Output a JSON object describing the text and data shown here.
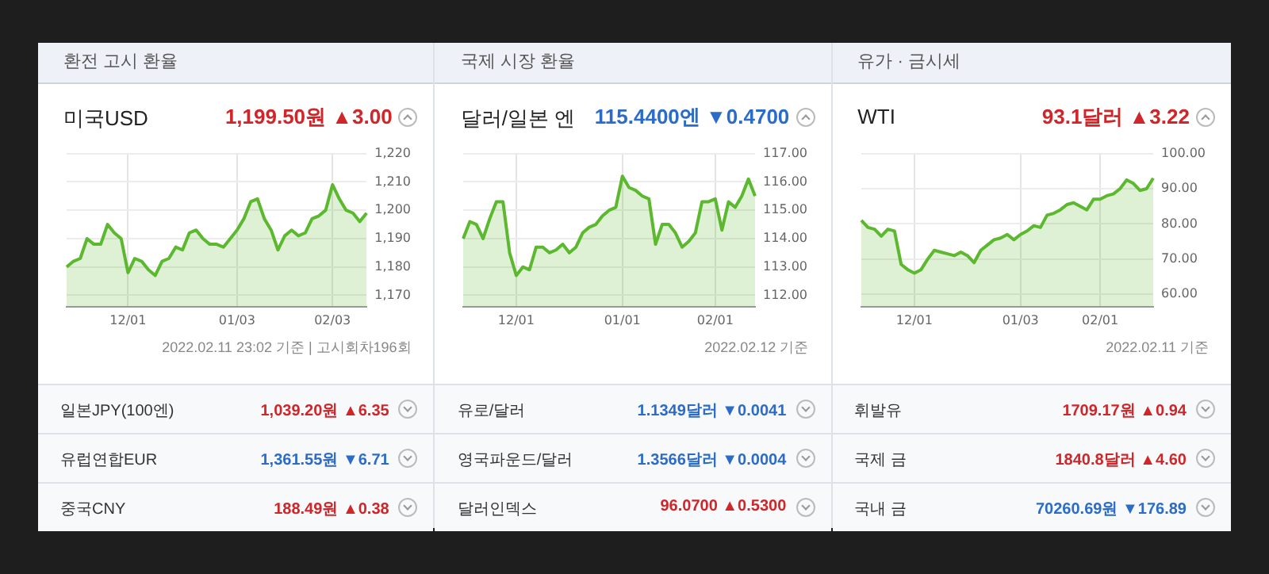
{
  "chart_data": [
    {
      "type": "area",
      "title": "환전 고시 환율",
      "subtitle": "미국USD",
      "categories": [
        null,
        null,
        null,
        null,
        null,
        null,
        null,
        null,
        null,
        "12/01",
        null,
        null,
        null,
        null,
        null,
        null,
        null,
        null,
        null,
        null,
        null,
        null,
        null,
        null,
        null,
        "01/03",
        null,
        null,
        null,
        null,
        null,
        null,
        null,
        null,
        null,
        null,
        null,
        null,
        null,
        "02/03",
        null,
        null,
        null,
        null,
        null
      ],
      "series": [
        {
          "color": "#5cb82e",
          "values": [
            1180,
            1182,
            1183,
            1190,
            1188,
            1188,
            1195,
            1192,
            1190,
            1178,
            1183,
            1182,
            1179,
            1177,
            1182,
            1183,
            1187,
            1186,
            1192,
            1193,
            1190,
            1188,
            1188,
            1187,
            1190,
            1193,
            1197,
            1203,
            1204,
            1197,
            1193,
            1186,
            1191,
            1193,
            1191,
            1192,
            1197,
            1198,
            1200,
            1209,
            1204,
            1200,
            1199,
            1196,
            1199
          ]
        }
      ],
      "ylim": [
        1166,
        1220
      ],
      "yticks": [
        {
          "value": 1170,
          "label": "1,170"
        },
        {
          "value": 1180,
          "label": "1,180"
        },
        {
          "value": 1190,
          "label": "1,190"
        },
        {
          "value": 1200,
          "label": "1,200"
        },
        {
          "value": 1210,
          "label": "1,210"
        },
        {
          "value": 1220,
          "label": "1,220"
        }
      ],
      "grid": true,
      "annotations": [
        "1,199.50원 ▲3.00",
        "2022.02.11 23:02 기준 | 고시회차196회",
        "일본JPY(100엔)",
        "1,039.20원 ▲6.35",
        "유럽연합EUR",
        "1,361.55원 ▼6.71",
        "중국CNY",
        "188.49원 ▲0.38"
      ]
    },
    {
      "type": "area",
      "title": "국제 시장 환율",
      "subtitle": "달러/일본 엔",
      "categories": [
        null,
        null,
        null,
        null,
        null,
        null,
        null,
        null,
        "12/01",
        null,
        null,
        null,
        null,
        null,
        null,
        null,
        null,
        null,
        null,
        null,
        null,
        null,
        null,
        null,
        "01/01",
        null,
        null,
        null,
        null,
        null,
        null,
        null,
        null,
        null,
        null,
        null,
        null,
        null,
        "02/01",
        null,
        null,
        null,
        null,
        null,
        null
      ],
      "series": [
        {
          "color": "#5cb82e",
          "values": [
            114.0,
            114.6,
            114.5,
            114.0,
            114.7,
            115.3,
            115.3,
            113.5,
            112.7,
            113.0,
            112.9,
            113.7,
            113.7,
            113.5,
            113.6,
            113.8,
            113.5,
            113.7,
            114.2,
            114.4,
            114.5,
            114.8,
            115.0,
            115.1,
            116.2,
            115.8,
            115.7,
            115.5,
            115.4,
            113.8,
            114.5,
            114.5,
            114.2,
            113.7,
            113.9,
            114.2,
            115.3,
            115.3,
            115.4,
            114.3,
            115.3,
            115.1,
            115.5,
            116.1,
            115.5
          ]
        }
      ],
      "ylim": [
        111.6,
        117
      ],
      "yticks": [
        {
          "value": 112,
          "label": "112.00"
        },
        {
          "value": 113,
          "label": "113.00"
        },
        {
          "value": 114,
          "label": "114.00"
        },
        {
          "value": 115,
          "label": "115.00"
        },
        {
          "value": 116,
          "label": "116.00"
        },
        {
          "value": 117,
          "label": "117.00"
        }
      ],
      "grid": true,
      "annotations": [
        "115.4400엔 ▼0.4700",
        "2022.02.12 기준",
        "유로/달러",
        "1.1349달러 ▼0.0041",
        "영국파운드/달러",
        "1.3566달러 ▼0.0004",
        "달러인덱스",
        "96.0700 ▲0.5300"
      ]
    },
    {
      "type": "area",
      "title": "유가 · 금시세",
      "subtitle": "WTI",
      "categories": [
        null,
        null,
        null,
        null,
        null,
        null,
        null,
        null,
        "12/01",
        null,
        null,
        null,
        null,
        null,
        null,
        null,
        null,
        null,
        null,
        null,
        null,
        null,
        null,
        null,
        "01/03",
        null,
        null,
        null,
        null,
        null,
        null,
        null,
        null,
        null,
        null,
        null,
        "02/01",
        null,
        null,
        null,
        null,
        null,
        null,
        null,
        null
      ],
      "series": [
        {
          "color": "#5cb82e",
          "values": [
            81,
            79,
            78.5,
            76.5,
            78.5,
            78,
            68.5,
            67,
            66,
            67,
            70,
            72.5,
            72,
            71.5,
            71,
            72,
            71,
            69,
            72.5,
            74,
            75.5,
            76,
            77,
            75.5,
            77,
            78,
            79.5,
            79,
            82.5,
            83,
            84,
            85.5,
            86,
            85,
            84,
            87,
            87,
            88,
            88.5,
            90,
            92.5,
            91.5,
            89.5,
            90,
            93
          ]
        }
      ],
      "ylim": [
        56.5,
        100
      ],
      "yticks": [
        {
          "value": 60,
          "label": "60.00"
        },
        {
          "value": 70,
          "label": "70.00"
        },
        {
          "value": 80,
          "label": "80.00"
        },
        {
          "value": 90,
          "label": "90.00"
        },
        {
          "value": 100,
          "label": "100.00"
        }
      ],
      "grid": true,
      "annotations": [
        "93.1달러 ▲3.22",
        "2022.02.11 기준",
        "휘발유",
        "1709.17원 ▲0.94",
        "국제 금",
        "1840.8달러 ▲4.60",
        "국내 금",
        "70260.69원 ▼176.89"
      ]
    }
  ]
}
